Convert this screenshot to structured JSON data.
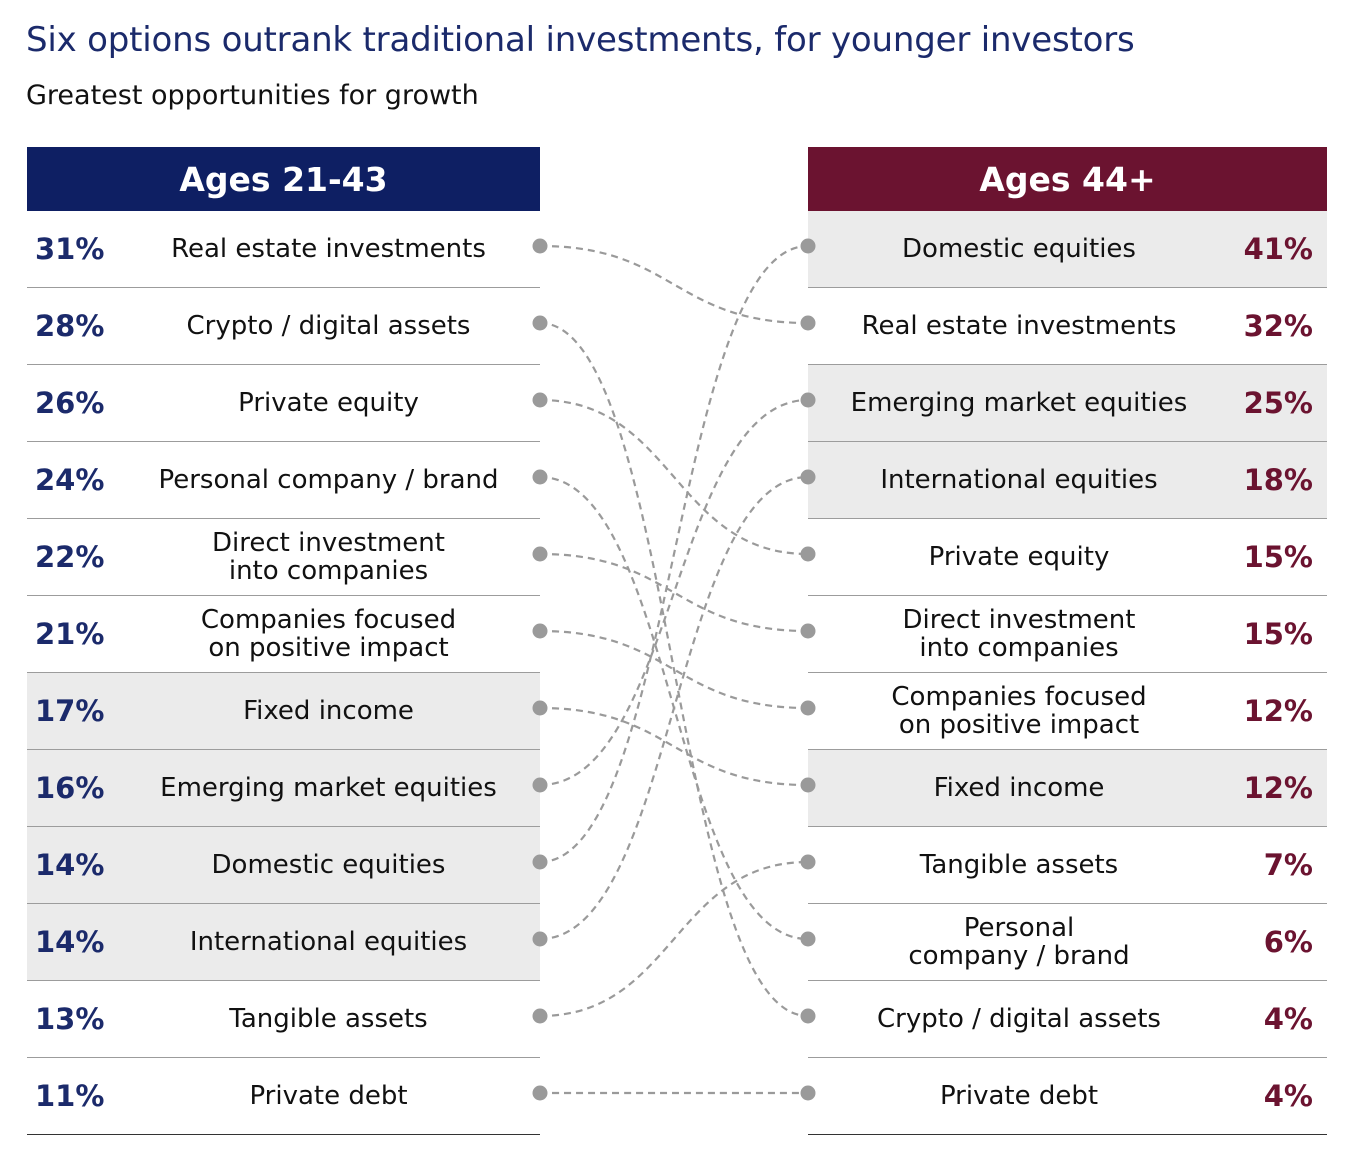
{
  "title": "Six options outrank traditional investments, for younger investors",
  "subtitle": "Greatest opportunities for growth",
  "colors": {
    "left_header": "#0e1f63",
    "left_text": "#1b2a6b",
    "right_header": "#6b1330",
    "right_text": "#6b1330",
    "connector": "#9a9a9a",
    "shaded_row": "#ebebeb"
  },
  "chart_data": {
    "type": "table",
    "left": {
      "header": "Ages 21-43",
      "rows": [
        {
          "label": "Real estate investments",
          "pct": "31%",
          "value": 31,
          "shaded": false
        },
        {
          "label": "Crypto / digital assets",
          "pct": "28%",
          "value": 28,
          "shaded": false
        },
        {
          "label": "Private equity",
          "pct": "26%",
          "value": 26,
          "shaded": false
        },
        {
          "label": "Personal company / brand",
          "pct": "24%",
          "value": 24,
          "shaded": false
        },
        {
          "label": "Direct investment\ninto companies",
          "pct": "22%",
          "value": 22,
          "shaded": false
        },
        {
          "label": "Companies focused\non positive impact",
          "pct": "21%",
          "value": 21,
          "shaded": false
        },
        {
          "label": "Fixed income",
          "pct": "17%",
          "value": 17,
          "shaded": true
        },
        {
          "label": "Emerging market equities",
          "pct": "16%",
          "value": 16,
          "shaded": true
        },
        {
          "label": "Domestic equities",
          "pct": "14%",
          "value": 14,
          "shaded": true
        },
        {
          "label": "International equities",
          "pct": "14%",
          "value": 14,
          "shaded": true
        },
        {
          "label": "Tangible assets",
          "pct": "13%",
          "value": 13,
          "shaded": false
        },
        {
          "label": "Private debt",
          "pct": "11%",
          "value": 11,
          "shaded": false
        }
      ]
    },
    "right": {
      "header": "Ages 44+",
      "rows": [
        {
          "label": "Domestic equities",
          "pct": "41%",
          "value": 41,
          "shaded": true
        },
        {
          "label": "Real estate investments",
          "pct": "32%",
          "value": 32,
          "shaded": false
        },
        {
          "label": "Emerging market equities",
          "pct": "25%",
          "value": 25,
          "shaded": true
        },
        {
          "label": "International equities",
          "pct": "18%",
          "value": 18,
          "shaded": true
        },
        {
          "label": "Private equity",
          "pct": "15%",
          "value": 15,
          "shaded": false
        },
        {
          "label": "Direct investment\ninto companies",
          "pct": "15%",
          "value": 15,
          "shaded": false
        },
        {
          "label": "Companies focused\non positive impact",
          "pct": "12%",
          "value": 12,
          "shaded": false
        },
        {
          "label": "Fixed income",
          "pct": "12%",
          "value": 12,
          "shaded": true
        },
        {
          "label": "Tangible assets",
          "pct": "7%",
          "value": 7,
          "shaded": false
        },
        {
          "label": "Personal\ncompany / brand",
          "pct": "6%",
          "value": 6,
          "shaded": false
        },
        {
          "label": "Crypto / digital assets",
          "pct": "4%",
          "value": 4,
          "shaded": false
        },
        {
          "label": "Private debt",
          "pct": "4%",
          "value": 4,
          "shaded": false
        }
      ]
    },
    "links": [
      [
        0,
        1
      ],
      [
        1,
        10
      ],
      [
        2,
        4
      ],
      [
        3,
        9
      ],
      [
        4,
        5
      ],
      [
        5,
        6
      ],
      [
        6,
        7
      ],
      [
        7,
        2
      ],
      [
        8,
        0
      ],
      [
        9,
        3
      ],
      [
        10,
        8
      ],
      [
        11,
        11
      ]
    ]
  }
}
